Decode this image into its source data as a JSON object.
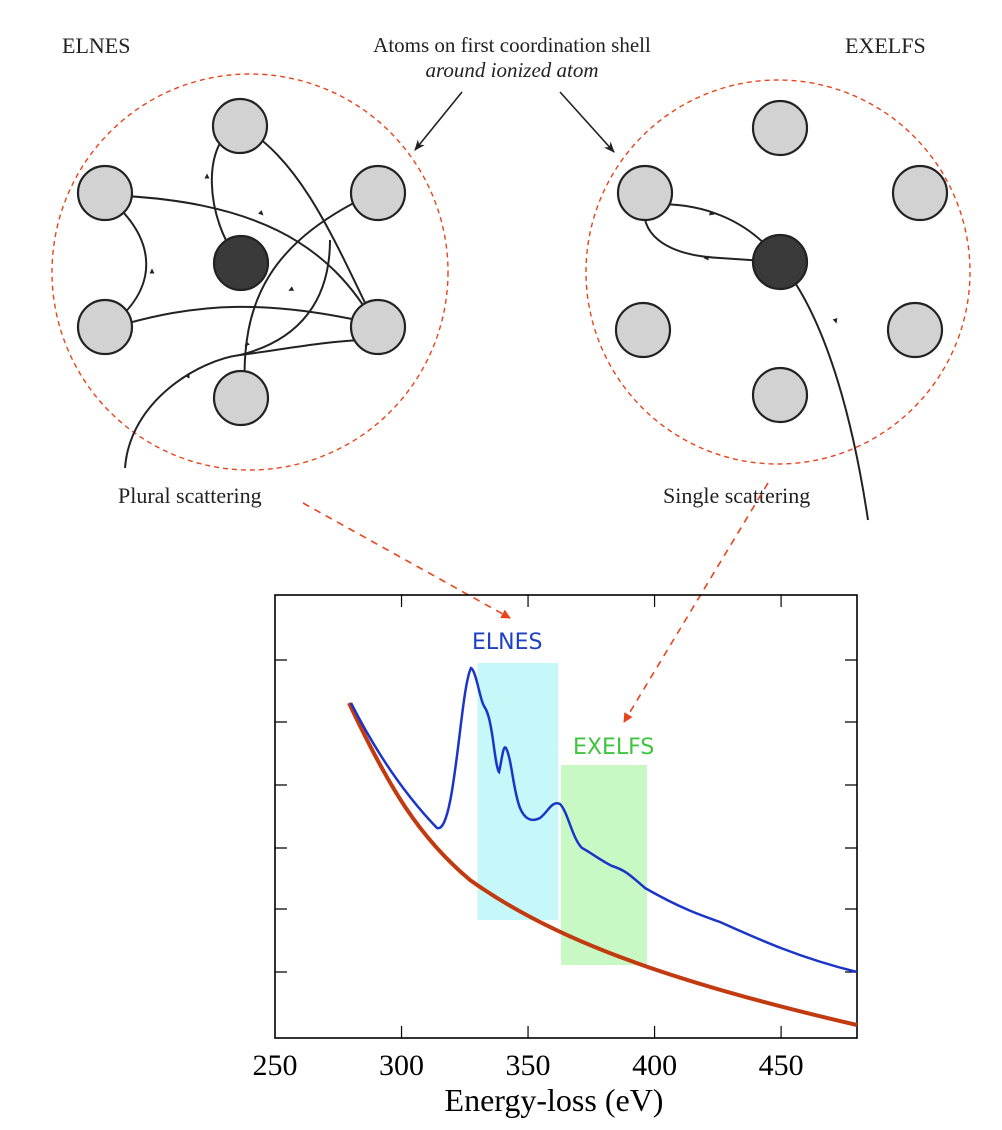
{
  "diagram": {
    "left_title": "ELNES",
    "right_title": "EXELFS",
    "center_label_line1": "Atoms on first coordination shell",
    "center_label_line2": "around ionized atom",
    "left_caption": "Plural scattering",
    "right_caption": "Single scattering"
  },
  "chart_data": {
    "type": "line",
    "xlabel": "Energy-loss (eV)",
    "ylabel": "",
    "xlim": [
      250,
      480
    ],
    "x_ticks": [
      250,
      300,
      350,
      400,
      450
    ],
    "grid": false,
    "regions": [
      {
        "label": "ELNES",
        "x_start": 330,
        "x_end": 362,
        "color": "#c6f8fa",
        "label_color": "#1f3fc4"
      },
      {
        "label": "EXELFS",
        "x_start": 363,
        "x_end": 397,
        "color": "#c8f8c4",
        "label_color": "#3fc43f"
      }
    ],
    "series": [
      {
        "color": "#1a35c8",
        "description": "spectrum with edge"
      },
      {
        "color": "#c23a10",
        "description": "background"
      }
    ]
  },
  "colors": {
    "atom_fill": "#d2d2d2",
    "ionized_fill": "#3a3a3a",
    "dashed_red": "#e8441c"
  }
}
